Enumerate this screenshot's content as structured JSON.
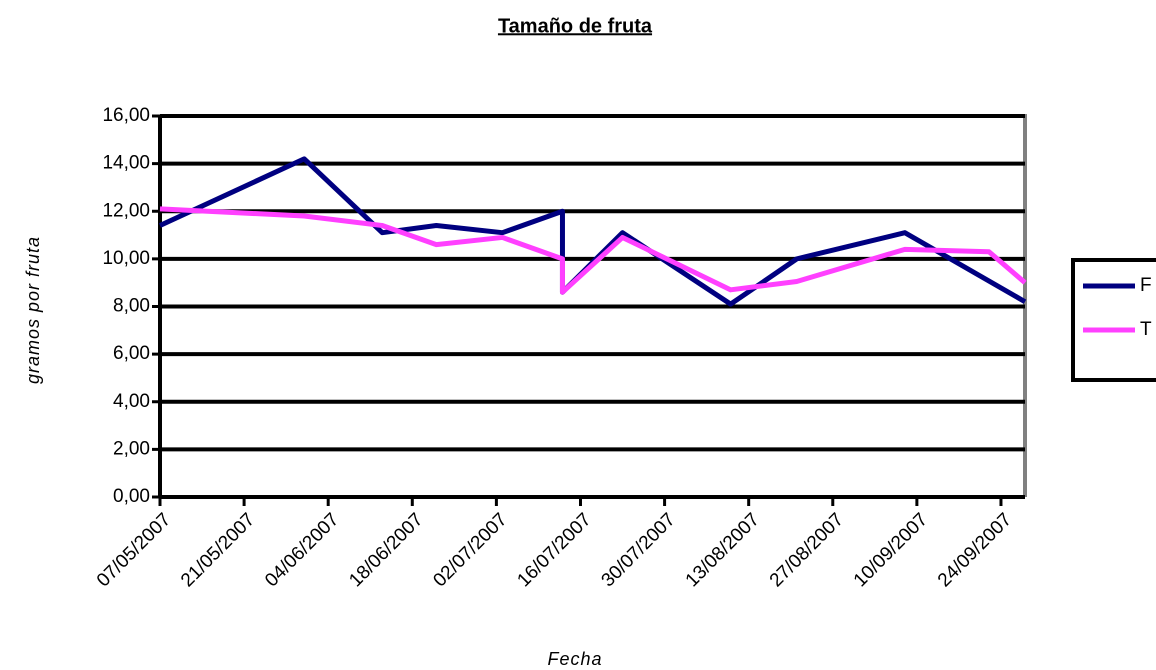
{
  "chart_data": {
    "type": "line",
    "title": "Tamaño de fruta",
    "xlabel": "Fecha",
    "ylabel": "gramos por fruta",
    "xlim": [
      "07/05/2007",
      "28/09/2007"
    ],
    "xticks": [
      "07/05/2007",
      "21/05/2007",
      "04/06/2007",
      "18/06/2007",
      "02/07/2007",
      "16/07/2007",
      "30/07/2007",
      "13/08/2007",
      "27/08/2007",
      "10/09/2007",
      "24/09/2007"
    ],
    "ylim": [
      0,
      16
    ],
    "yticks": [
      {
        "value": 0,
        "label": "0,00"
      },
      {
        "value": 2,
        "label": "2,00"
      },
      {
        "value": 4,
        "label": "4,00"
      },
      {
        "value": 6,
        "label": "6,00"
      },
      {
        "value": 8,
        "label": "8,00"
      },
      {
        "value": 10,
        "label": "10,00"
      },
      {
        "value": 12,
        "label": "12,00"
      },
      {
        "value": 14,
        "label": "14,00"
      },
      {
        "value": 16,
        "label": "16,00"
      }
    ],
    "grid": true,
    "legend": "right",
    "series": [
      {
        "name": "F",
        "color": "#000080",
        "x": [
          "07/05/2007",
          "31/05/2007",
          "13/06/2007",
          "22/06/2007",
          "03/07/2007",
          "13/07/2007",
          "13/07/2007",
          "23/07/2007",
          "10/08/2007",
          "21/08/2007",
          "08/09/2007",
          "28/09/2007"
        ],
        "values": [
          11.4,
          14.2,
          11.1,
          11.4,
          11.1,
          12.0,
          8.6,
          11.1,
          8.1,
          10.0,
          11.1,
          8.2
        ]
      },
      {
        "name": "T",
        "color": "#ff40ff",
        "x": [
          "07/05/2007",
          "31/05/2007",
          "13/06/2007",
          "22/06/2007",
          "03/07/2007",
          "13/07/2007",
          "13/07/2007",
          "23/07/2007",
          "10/08/2007",
          "21/08/2007",
          "08/09/2007",
          "22/09/2007",
          "28/09/2007"
        ],
        "values": [
          12.1,
          11.8,
          11.4,
          10.6,
          10.9,
          10.0,
          8.6,
          10.9,
          8.7,
          9.05,
          10.4,
          10.3,
          9.0
        ]
      }
    ]
  }
}
